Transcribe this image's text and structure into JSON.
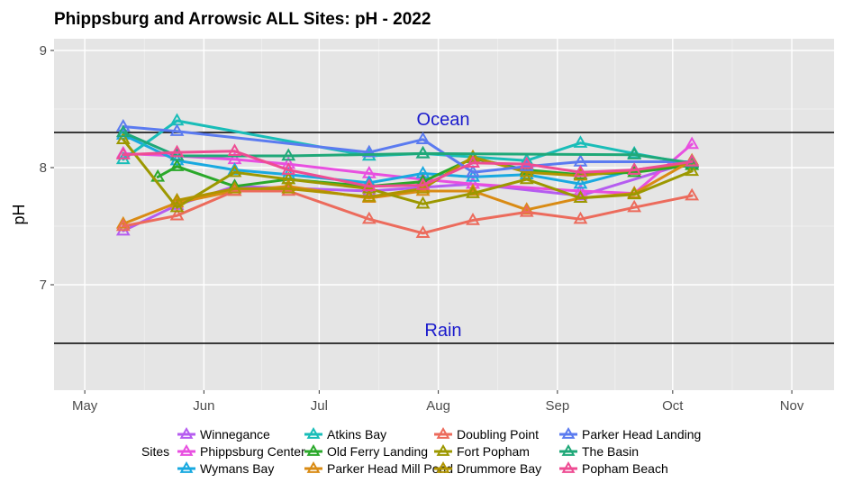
{
  "chart_data": {
    "type": "line",
    "title": "Phippsburg  and Arrowsic ALL Sites: pH - 2022",
    "xlabel": "",
    "ylabel": "pH",
    "ylim": [
      6.1,
      9.1
    ],
    "yticks": [
      7,
      8,
      9
    ],
    "xlim": [
      "2022-04-23",
      "2022-11-12"
    ],
    "xticks": [
      {
        "date": "2022-05-01",
        "label": "May"
      },
      {
        "date": "2022-06-01",
        "label": "Jun"
      },
      {
        "date": "2022-07-01",
        "label": "Jul"
      },
      {
        "date": "2022-08-01",
        "label": "Aug"
      },
      {
        "date": "2022-09-01",
        "label": "Sep"
      },
      {
        "date": "2022-10-01",
        "label": "Oct"
      },
      {
        "date": "2022-11-01",
        "label": "Nov"
      }
    ],
    "grid": true,
    "legend_title": "Sites",
    "legend_position": "bottom",
    "reference_lines": [
      {
        "label": "Ocean",
        "value": 8.3
      },
      {
        "label": "Rain",
        "value": 6.5
      }
    ],
    "series": [
      {
        "name": "Winnegance",
        "color": "#b55cf0",
        "points": [
          [
            "2022-05-11",
            7.46
          ],
          [
            "2022-05-25",
            7.68
          ],
          [
            "2022-06-09",
            7.84
          ],
          [
            "2022-07-14",
            7.8
          ],
          [
            "2022-08-10",
            7.86
          ],
          [
            "2022-09-07",
            7.76
          ],
          [
            "2022-10-06",
            8.05
          ]
        ]
      },
      {
        "name": "Phippsburg Center",
        "color": "#e84fe0",
        "points": [
          [
            "2022-05-11",
            8.12
          ],
          [
            "2022-05-25",
            8.1
          ],
          [
            "2022-06-09",
            8.07
          ],
          [
            "2022-06-23",
            8.03
          ],
          [
            "2022-07-14",
            7.95
          ],
          [
            "2022-07-28",
            7.9
          ],
          [
            "2022-08-10",
            7.86
          ],
          [
            "2022-09-07",
            7.8
          ],
          [
            "2022-09-21",
            7.78
          ],
          [
            "2022-10-06",
            8.2
          ]
        ]
      },
      {
        "name": "Wymans Bay",
        "color": "#19a9e0",
        "points": [
          [
            "2022-05-11",
            8.28
          ],
          [
            "2022-05-25",
            8.06
          ],
          [
            "2022-06-09",
            7.98
          ],
          [
            "2022-06-23",
            7.94
          ],
          [
            "2022-07-14",
            7.87
          ],
          [
            "2022-07-28",
            7.95
          ],
          [
            "2022-08-10",
            7.92
          ],
          [
            "2022-08-24",
            7.94
          ],
          [
            "2022-09-07",
            7.86
          ],
          [
            "2022-09-21",
            7.98
          ],
          [
            "2022-10-06",
            8.04
          ]
        ]
      },
      {
        "name": "Atkins Bay",
        "color": "#19bdb8",
        "points": [
          [
            "2022-05-11",
            8.07
          ],
          [
            "2022-05-25",
            8.4
          ],
          [
            "2022-07-14",
            8.1
          ],
          [
            "2022-07-28",
            8.12
          ],
          [
            "2022-08-24",
            8.06
          ],
          [
            "2022-09-07",
            8.21
          ],
          [
            "2022-09-21",
            8.12
          ],
          [
            "2022-10-06",
            8.03
          ]
        ]
      },
      {
        "name": "Old Ferry Landing",
        "color": "#2aa82a",
        "points": [
          [
            "2022-05-20",
            7.92
          ],
          [
            "2022-05-25",
            8.01
          ],
          [
            "2022-06-09",
            7.84
          ],
          [
            "2022-06-23",
            7.9
          ],
          [
            "2022-07-14",
            7.84
          ],
          [
            "2022-07-28",
            7.88
          ],
          [
            "2022-08-10",
            8.08
          ],
          [
            "2022-08-24",
            7.98
          ],
          [
            "2022-09-07",
            7.94
          ],
          [
            "2022-09-21",
            7.96
          ],
          [
            "2022-10-06",
            8.02
          ]
        ]
      },
      {
        "name": "Parker Head Mill Pond",
        "color": "#d98b14",
        "points": [
          [
            "2022-05-11",
            7.52
          ],
          [
            "2022-05-25",
            7.7
          ],
          [
            "2022-06-09",
            7.8
          ],
          [
            "2022-06-23",
            7.84
          ],
          [
            "2022-07-14",
            7.74
          ],
          [
            "2022-07-28",
            7.8
          ],
          [
            "2022-08-10",
            7.8
          ],
          [
            "2022-08-24",
            7.64
          ],
          [
            "2022-09-07",
            7.74
          ],
          [
            "2022-09-21",
            7.78
          ],
          [
            "2022-10-06",
            8.06
          ]
        ]
      },
      {
        "name": "Doubling Point",
        "color": "#ec6b5c",
        "points": [
          [
            "2022-05-11",
            7.5
          ],
          [
            "2022-05-25",
            7.59
          ],
          [
            "2022-06-09",
            7.8
          ],
          [
            "2022-06-23",
            7.8
          ],
          [
            "2022-07-14",
            7.56
          ],
          [
            "2022-07-28",
            7.44
          ],
          [
            "2022-08-10",
            7.55
          ],
          [
            "2022-08-24",
            7.62
          ],
          [
            "2022-09-07",
            7.56
          ],
          [
            "2022-09-21",
            7.66
          ],
          [
            "2022-10-06",
            7.76
          ]
        ]
      },
      {
        "name": "Fort Popham",
        "color": "#9c9800",
        "points": [
          [
            "2022-05-11",
            8.24
          ],
          [
            "2022-05-25",
            7.66
          ],
          [
            "2022-06-09",
            7.96
          ],
          [
            "2022-06-23",
            7.9
          ],
          [
            "2022-07-14",
            7.82
          ],
          [
            "2022-07-28",
            7.69
          ],
          [
            "2022-08-10",
            7.78
          ],
          [
            "2022-08-24",
            7.9
          ],
          [
            "2022-09-07",
            7.74
          ],
          [
            "2022-09-21",
            7.77
          ],
          [
            "2022-10-06",
            7.97
          ]
        ]
      },
      {
        "name": "Drummore Bay",
        "color": "#b09400",
        "points": [
          [
            "2022-05-25",
            7.72
          ],
          [
            "2022-06-09",
            7.82
          ],
          [
            "2022-06-23",
            7.82
          ],
          [
            "2022-07-14",
            7.75
          ],
          [
            "2022-07-28",
            7.82
          ],
          [
            "2022-08-10",
            8.09
          ],
          [
            "2022-08-24",
            7.96
          ],
          [
            "2022-09-07",
            7.93
          ],
          [
            "2022-09-21",
            7.98
          ],
          [
            "2022-10-06",
            8.04
          ]
        ]
      },
      {
        "name": "Parker Head Landing",
        "color": "#5b7bf0",
        "points": [
          [
            "2022-05-11",
            8.35
          ],
          [
            "2022-05-25",
            8.31
          ],
          [
            "2022-07-14",
            8.13
          ],
          [
            "2022-07-28",
            8.24
          ],
          [
            "2022-08-10",
            7.96
          ],
          [
            "2022-08-24",
            8.01
          ],
          [
            "2022-09-07",
            8.05
          ],
          [
            "2022-10-06",
            8.05
          ]
        ]
      },
      {
        "name": "The Basin",
        "color": "#1fa878",
        "points": [
          [
            "2022-05-11",
            8.3
          ],
          [
            "2022-05-25",
            8.1
          ],
          [
            "2022-06-23",
            8.1
          ],
          [
            "2022-07-28",
            8.12
          ],
          [
            "2022-09-21",
            8.11
          ],
          [
            "2022-10-06",
            8.04
          ]
        ]
      },
      {
        "name": "Popham Beach",
        "color": "#ee4c93",
        "points": [
          [
            "2022-05-11",
            8.11
          ],
          [
            "2022-05-25",
            8.13
          ],
          [
            "2022-06-09",
            8.14
          ],
          [
            "2022-06-23",
            7.98
          ],
          [
            "2022-07-14",
            7.84
          ],
          [
            "2022-07-28",
            7.85
          ],
          [
            "2022-08-10",
            8.04
          ],
          [
            "2022-08-24",
            8.03
          ],
          [
            "2022-09-07",
            7.96
          ],
          [
            "2022-09-21",
            7.98
          ],
          [
            "2022-10-06",
            8.05
          ]
        ]
      }
    ]
  }
}
